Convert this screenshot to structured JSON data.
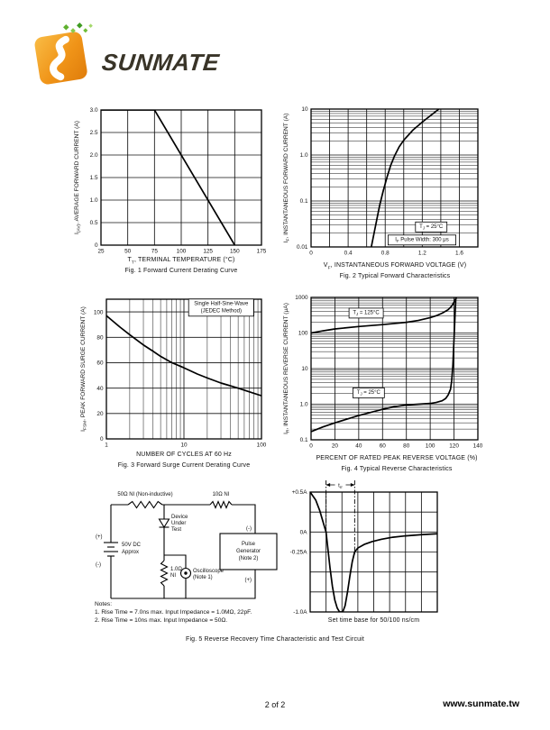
{
  "logo": {
    "brand": "SUNMATE",
    "accent_color": "#f09418",
    "text_color": "#393428",
    "mark": "orange-rounded-square-with-white-s-swoosh-and-green-diamonds"
  },
  "page": {
    "footer_page": "2 of 2",
    "footer_site": "www.sunmate.tw"
  },
  "chart_data": [
    {
      "id": "fig1",
      "type": "line",
      "title": "Fig. 1  Forward Current Derating Curve",
      "xlabel": "T~T~, TERMINAL TEMPERATURE (°C)",
      "ylabel": "I~(AV)~, AVERAGE FORWARD CURRENT (A)",
      "x": {
        "scale": "linear",
        "min": 25,
        "max": 175,
        "grid_step": 25,
        "tick_values": [
          25,
          50,
          75,
          100,
          125,
          150,
          175
        ],
        "tick_labels": [
          "25",
          "50",
          "75",
          "100",
          "125",
          "150",
          "175"
        ]
      },
      "y": {
        "scale": "linear",
        "min": 0,
        "max": 3,
        "grid_step": 0.5,
        "tick_values": [
          0,
          0.5,
          1,
          1.5,
          2,
          2.5,
          3
        ],
        "tick_labels": [
          "0",
          "0.5",
          "1.0",
          "1.5",
          "2.0",
          "2.5",
          "3.0"
        ]
      },
      "series": [
        {
          "name": "average-forward-current-limit",
          "points": [
            [
              25,
              3
            ],
            [
              75,
              3
            ],
            [
              150,
              0
            ]
          ]
        }
      ],
      "annotations": []
    },
    {
      "id": "fig2",
      "type": "line",
      "title": "Fig. 2  Typical Forward Characteristics",
      "xlabel": "V~F~, INSTANTANEOUS FORWARD VOLTAGE (V)",
      "ylabel": "I~F~, INSTANTANEOUS FORWARD CURRENT (A)",
      "x": {
        "scale": "linear",
        "min": 0,
        "max": 1.8,
        "grid_step": 0.2,
        "tick_values": [
          0,
          0.4,
          0.8,
          1.2,
          1.6
        ],
        "tick_labels": [
          "0",
          "0.4",
          "0.8",
          "1.2",
          "1.6"
        ]
      },
      "y": {
        "scale": "log",
        "min": 0.01,
        "max": 10,
        "tick_values": [
          0.01,
          0.1,
          1,
          10
        ],
        "tick_labels": [
          "0.01",
          "0.1",
          "1.0",
          "10"
        ]
      },
      "series": [
        {
          "name": "forward-characteristic",
          "points": [
            [
              0.65,
              0.01
            ],
            [
              0.68,
              0.02
            ],
            [
              0.71,
              0.04
            ],
            [
              0.74,
              0.08
            ],
            [
              0.78,
              0.17
            ],
            [
              0.82,
              0.33
            ],
            [
              0.86,
              0.6
            ],
            [
              0.9,
              0.95
            ],
            [
              0.95,
              1.5
            ],
            [
              1.0,
              2.1
            ],
            [
              1.1,
              3.5
            ],
            [
              1.2,
              5.2
            ],
            [
              1.3,
              7.5
            ],
            [
              1.38,
              10
            ]
          ]
        }
      ],
      "annotations": [
        {
          "rx": 0.72,
          "ry": 0.855,
          "lines": [
            "T~J~ = 25°C"
          ],
          "boxed": true
        },
        {
          "rx": 0.665,
          "ry": 0.95,
          "lines": [
            "I~F~ Pulse Width: 300 μs"
          ],
          "boxed": true
        }
      ]
    },
    {
      "id": "fig3",
      "type": "line",
      "title": "Fig. 3  Forward Surge Current Derating Curve",
      "xlabel": "NUMBER OF CYCLES AT 60 Hz",
      "ylabel": "I~FSM~, PEAK FORWARD SURGE CURRENT (A)",
      "x": {
        "scale": "log",
        "min": 1,
        "max": 100,
        "tick_values": [
          1,
          10,
          100
        ],
        "tick_labels": [
          "1",
          "10",
          "100"
        ]
      },
      "y": {
        "scale": "linear",
        "min": 0,
        "max": 110,
        "grid_step": 20,
        "tick_values": [
          0,
          20,
          40,
          60,
          80,
          100
        ],
        "tick_labels": [
          "0",
          "20",
          "40",
          "60",
          "80",
          "100"
        ]
      },
      "series": [
        {
          "name": "peak-surge-current",
          "points": [
            [
              1,
              97
            ],
            [
              1.5,
              88
            ],
            [
              2,
              82
            ],
            [
              3,
              74
            ],
            [
              4,
              69
            ],
            [
              5,
              65
            ],
            [
              7,
              60
            ],
            [
              10,
              56
            ],
            [
              15,
              51
            ],
            [
              20,
              48
            ],
            [
              30,
              44
            ],
            [
              50,
              40
            ],
            [
              70,
              37
            ],
            [
              100,
              34
            ]
          ]
        }
      ],
      "annotations": [
        {
          "rx": 0.74,
          "ry": 0.06,
          "lines": [
            "Single Half-Sine-Wave",
            "(JEDEC Method)"
          ],
          "boxed": true
        }
      ]
    },
    {
      "id": "fig4",
      "type": "line",
      "title": "Fig. 4  Typical Reverse Characteristics",
      "xlabel": "PERCENT OF RATED PEAK REVERSE VOLTAGE (%)",
      "ylabel": "I~R~, INSTANTANEOUS REVERSE CURRENT (μA)",
      "x": {
        "scale": "linear",
        "min": 0,
        "max": 140,
        "grid_step": 20,
        "tick_values": [
          0,
          20,
          40,
          60,
          80,
          100,
          120,
          140
        ],
        "tick_labels": [
          "0",
          "20",
          "40",
          "60",
          "80",
          "100",
          "120",
          "140"
        ]
      },
      "y": {
        "scale": "log",
        "min": 0.1,
        "max": 1000,
        "tick_values": [
          0.1,
          1,
          10,
          100,
          1000
        ],
        "tick_labels": [
          "0.1",
          "1.0",
          "10",
          "100",
          "1000"
        ]
      },
      "series": [
        {
          "name": "reverse-current-125C",
          "label": "T~J~ = 125°C",
          "points": [
            [
              0,
              100
            ],
            [
              10,
              115
            ],
            [
              20,
              130
            ],
            [
              40,
              152
            ],
            [
              60,
              172
            ],
            [
              80,
              200
            ],
            [
              90,
              225
            ],
            [
              100,
              270
            ],
            [
              105,
              305
            ],
            [
              110,
              360
            ],
            [
              115,
              450
            ],
            [
              118,
              570
            ],
            [
              120,
              740
            ],
            [
              122,
              1000
            ]
          ]
        },
        {
          "name": "reverse-current-25C",
          "label": "T~J~ = 25°C",
          "points": [
            [
              0,
              0.17
            ],
            [
              10,
              0.23
            ],
            [
              20,
              0.3
            ],
            [
              40,
              0.48
            ],
            [
              60,
              0.72
            ],
            [
              70,
              0.85
            ],
            [
              80,
              0.95
            ],
            [
              90,
              1.0
            ],
            [
              100,
              1.05
            ],
            [
              105,
              1.12
            ],
            [
              110,
              1.25
            ],
            [
              113,
              1.45
            ],
            [
              115,
              1.8
            ],
            [
              117,
              2.6
            ],
            [
              118,
              4.5
            ],
            [
              119,
              12
            ],
            [
              120,
              70
            ],
            [
              121,
              420
            ],
            [
              121.5,
              950
            ]
          ]
        }
      ],
      "annotations": [
        {
          "rx": 0.33,
          "ry": 0.11,
          "lines": [
            "T~J~ = 125°C"
          ],
          "boxed": true
        },
        {
          "rx": 0.345,
          "ry": 0.67,
          "lines": [
            "T~J~ = 25°C"
          ],
          "boxed": true
        }
      ]
    },
    {
      "id": "fig5-waveform",
      "type": "line",
      "title": "Set time base for 50/100 ns/cm",
      "xlabel": "",
      "ylabel": "",
      "x": {
        "scale": "linear",
        "min": 0,
        "max": 8,
        "grid_step": 1,
        "tick_values": [],
        "tick_labels": []
      },
      "y": {
        "scale": "linear",
        "min": -1,
        "max": 0.5,
        "grid_step": 0.25,
        "tick_values": [
          0.5,
          0,
          -0.25,
          -1
        ],
        "tick_labels": [
          "+0.5A",
          "0A",
          "-0.25A",
          "-1.0A"
        ]
      },
      "series": [
        {
          "name": "reverse-recovery-current",
          "points": [
            [
              0,
              0.5
            ],
            [
              0.35,
              0.4
            ],
            [
              0.6,
              0.27
            ],
            [
              0.85,
              0.1
            ],
            [
              1.0,
              0
            ],
            [
              1.1,
              -0.18
            ],
            [
              1.25,
              -0.45
            ],
            [
              1.4,
              -0.68
            ],
            [
              1.55,
              -0.85
            ],
            [
              1.7,
              -0.95
            ],
            [
              1.85,
              -1.0
            ],
            [
              2.05,
              -1.0
            ],
            [
              2.2,
              -0.92
            ],
            [
              2.35,
              -0.75
            ],
            [
              2.5,
              -0.55
            ],
            [
              2.65,
              -0.37
            ],
            [
              2.8,
              -0.25
            ],
            [
              3.0,
              -0.2
            ],
            [
              3.4,
              -0.155
            ],
            [
              3.9,
              -0.12
            ],
            [
              4.5,
              -0.09
            ],
            [
              5.2,
              -0.065
            ],
            [
              6.0,
              -0.048
            ],
            [
              7.0,
              -0.033
            ],
            [
              8.0,
              -0.022
            ]
          ]
        }
      ],
      "annotations": [],
      "markers": {
        "x1": 1,
        "x2": 2.8,
        "y1_end": 0,
        "y2_end": -0.3,
        "label": "t~rr~"
      }
    }
  ],
  "fig5": {
    "caption": "Fig. 5  Reverse Recovery Time Characteristic and Test Circuit",
    "circuit": {
      "r1_label": "50Ω NI (Non-inductive)",
      "r2_label": "10Ω NI",
      "battery_plus": "(+)",
      "battery_minus": "(-)",
      "battery_label_1": "50V DC",
      "battery_label_2": "Approx",
      "dut_1": "Device",
      "dut_2": "Under",
      "dut_3": "Test",
      "r3_label_1": "1.0Ω",
      "r3_label_2": "NI",
      "scope_1": "Oscilloscope",
      "scope_2": "(Note 1)",
      "pg_minus": "(-)",
      "pg_plus": "(+)",
      "pg_1": "Pulse",
      "pg_2": "Generator",
      "pg_3": "(Note 2)",
      "notes_title": "Notes:",
      "note_1": "1. Rise Time = 7.0ns max. Input Impedance = 1.0MΩ, 22pF.",
      "note_2": "2. Rise Time = 10ns max. Input Impedance = 50Ω."
    }
  }
}
